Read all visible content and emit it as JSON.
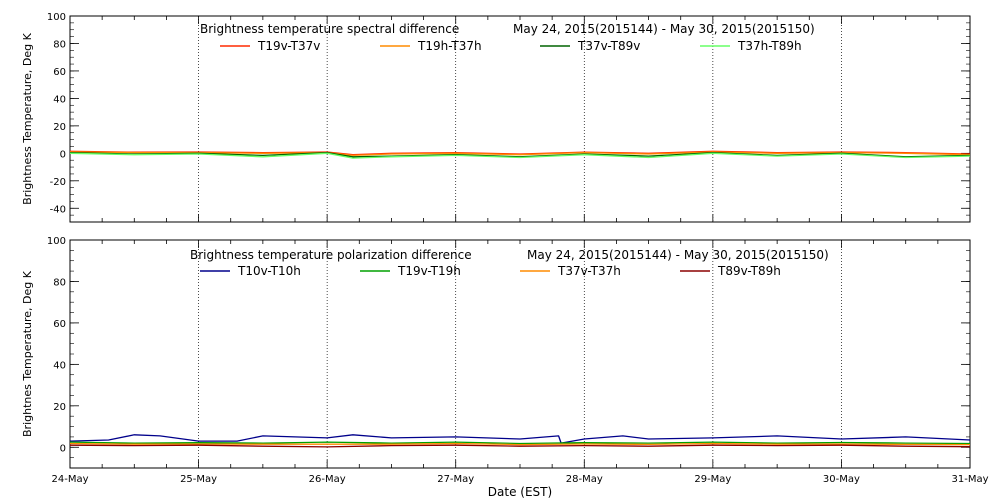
{
  "chart_data": [
    {
      "type": "line",
      "title": "Brightness temperature spectral difference",
      "subtitle": "May 24, 2015(2015144) - May 30, 2015(2015150)",
      "xlabel": "",
      "ylabel": "Brightness Temperature, Deg K",
      "ylim": [
        -50,
        100
      ],
      "yticks": [
        -40,
        -20,
        0,
        20,
        40,
        60,
        80,
        100
      ],
      "xlim": [
        0,
        7
      ],
      "grid": "vertical dotted lines at day boundaries",
      "legend_position": "top",
      "series": [
        {
          "name": "T19v-T37v",
          "color": "#ff2a00",
          "x": [
            0,
            0.5,
            1,
            1.5,
            2,
            2.2,
            2.5,
            3,
            3.5,
            4,
            4.5,
            5,
            5.5,
            6,
            6.5,
            7
          ],
          "values": [
            1.5,
            0.8,
            1,
            0.5,
            1,
            -1,
            0,
            0.5,
            -0.5,
            0.8,
            0,
            1.5,
            0.5,
            1,
            0.5,
            -0.5
          ]
        },
        {
          "name": "T19h-T37h",
          "color": "#ff8c00",
          "x": [
            0,
            0.5,
            1,
            1.5,
            2,
            2.2,
            2.5,
            3,
            3.5,
            4,
            4.5,
            5,
            5.5,
            6,
            6.5,
            7
          ],
          "values": [
            1,
            0.5,
            0.5,
            0,
            0.5,
            -1.5,
            -0.5,
            0,
            -1,
            0.5,
            -0.5,
            1,
            0,
            0.5,
            0,
            -1
          ]
        },
        {
          "name": "T37v-T89v",
          "color": "#006400",
          "x": [
            0,
            0.5,
            1,
            1.5,
            2,
            2.2,
            2.5,
            3,
            3.5,
            4,
            4.5,
            5,
            5.5,
            6,
            6.5,
            7
          ],
          "values": [
            0.5,
            -0.5,
            0,
            -1.5,
            0.5,
            -2.5,
            -2,
            -1,
            -2.5,
            -0.5,
            -2,
            0.5,
            -1.5,
            0,
            -2.5,
            -1.5
          ]
        },
        {
          "name": "T37h-T89h",
          "color": "#66ff66",
          "x": [
            0,
            0.5,
            1,
            1.5,
            2,
            2.2,
            2.5,
            3,
            3.5,
            4,
            4.5,
            5,
            5.5,
            6,
            6.5,
            7
          ],
          "values": [
            0,
            -1,
            -0.5,
            -2.5,
            0,
            -3.5,
            -2.5,
            -1.5,
            -3,
            -1,
            -3,
            0,
            -2,
            -0.5,
            -3,
            -2
          ]
        }
      ]
    },
    {
      "type": "line",
      "title": "Brightness temperature polarization difference",
      "subtitle": "May 24, 2015(2015144) - May 30, 2015(2015150)",
      "xlabel": "Date (EST)",
      "ylabel": "Brightnes Temperature, Deg K",
      "ylim": [
        -10,
        100
      ],
      "yticks": [
        0,
        20,
        40,
        60,
        80,
        100
      ],
      "xlim": [
        0,
        7
      ],
      "categories": [
        "24-May",
        "25-May",
        "26-May",
        "27-May",
        "28-May",
        "29-May",
        "30-May",
        "31-May"
      ],
      "grid": "vertical dotted lines at day boundaries",
      "legend_position": "top",
      "series": [
        {
          "name": "T10v-T10h",
          "color": "#00008b",
          "x": [
            0,
            0.3,
            0.5,
            0.7,
            1,
            1.3,
            1.5,
            2,
            2.2,
            2.5,
            3,
            3.5,
            3.8,
            3.82,
            4,
            4.3,
            4.5,
            5,
            5.5,
            6,
            6.5,
            7
          ],
          "values": [
            3,
            3.5,
            6,
            5.5,
            3,
            3,
            5.5,
            4.5,
            6,
            4.5,
            5,
            4,
            5.5,
            2,
            4,
            5.5,
            4,
            4.5,
            5.5,
            4,
            5,
            3.5
          ]
        },
        {
          "name": "T19v-T19h",
          "color": "#00a000",
          "x": [
            0,
            0.5,
            1,
            1.5,
            2,
            2.5,
            3,
            3.5,
            4,
            4.5,
            5,
            5.5,
            6,
            6.5,
            7
          ],
          "values": [
            2.5,
            2,
            2.2,
            2,
            2.5,
            2,
            2.5,
            1.8,
            2.2,
            2,
            2.5,
            2,
            2.3,
            2,
            1.8
          ]
        },
        {
          "name": "T37v-T37h",
          "color": "#ff8c00",
          "x": [
            0,
            0.5,
            1,
            1.5,
            2,
            2.5,
            3,
            3.5,
            4,
            4.5,
            5,
            5.5,
            6,
            6.5,
            7
          ],
          "values": [
            1.8,
            1.5,
            1.6,
            1.5,
            1.5,
            1.5,
            1.8,
            1.3,
            1.6,
            1.4,
            1.8,
            1.5,
            1.6,
            1.4,
            1.3
          ]
        },
        {
          "name": "T89v-T89h",
          "color": "#8b0000",
          "x": [
            0,
            0.5,
            1,
            1.5,
            2,
            2.5,
            3,
            3.5,
            4,
            4.5,
            5,
            5.5,
            6,
            6.5,
            7
          ],
          "values": [
            1,
            0.8,
            1,
            0.5,
            0.2,
            0.8,
            1,
            0.5,
            0.8,
            0.5,
            1,
            0.8,
            1,
            0.5,
            0.3
          ]
        }
      ]
    }
  ]
}
